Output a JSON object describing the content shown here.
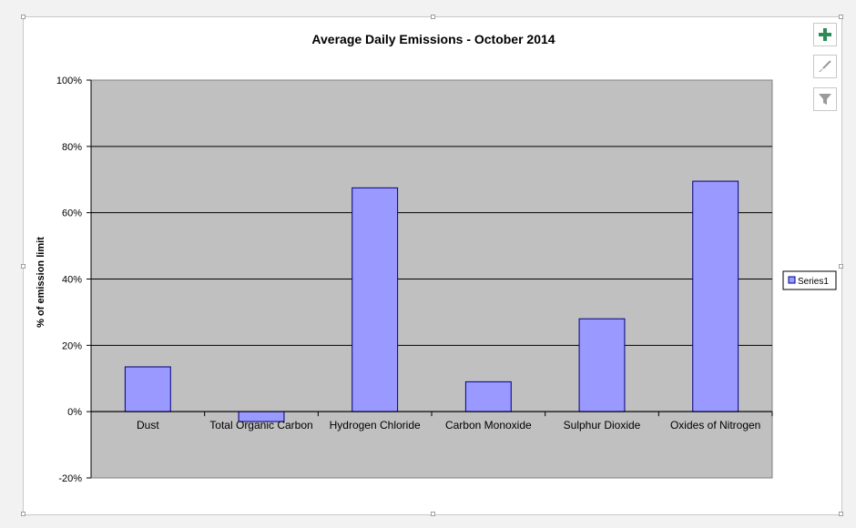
{
  "chart_data": {
    "type": "bar",
    "title": "Average Daily Emissions - October 2014",
    "xlabel": "",
    "ylabel": "% of emission limit",
    "categories": [
      "Dust",
      "Total Organic Carbon",
      "Hydrogen Chloride",
      "Carbon Monoxide",
      "Sulphur Dioxide",
      "Oxides of Nitrogen"
    ],
    "series": [
      {
        "name": "Series1",
        "values": [
          13.5,
          -3,
          67.5,
          9,
          28,
          69.5
        ]
      }
    ],
    "ylim": [
      -20,
      100
    ],
    "yticks": [
      -20,
      0,
      20,
      40,
      60,
      80,
      100
    ],
    "ytick_labels": [
      "-20%",
      "0%",
      "20%",
      "40%",
      "60%",
      "80%",
      "100%"
    ],
    "grid": true,
    "legend_position": "right",
    "colors": {
      "plot_background": "#c0c0c0",
      "bar_fill": "#9999ff",
      "bar_stroke": "#000080",
      "gridline": "#000000"
    }
  },
  "side_buttons": {
    "add_elements_icon": "plus-icon",
    "styles_icon": "brush-icon",
    "filters_icon": "filter-icon"
  }
}
